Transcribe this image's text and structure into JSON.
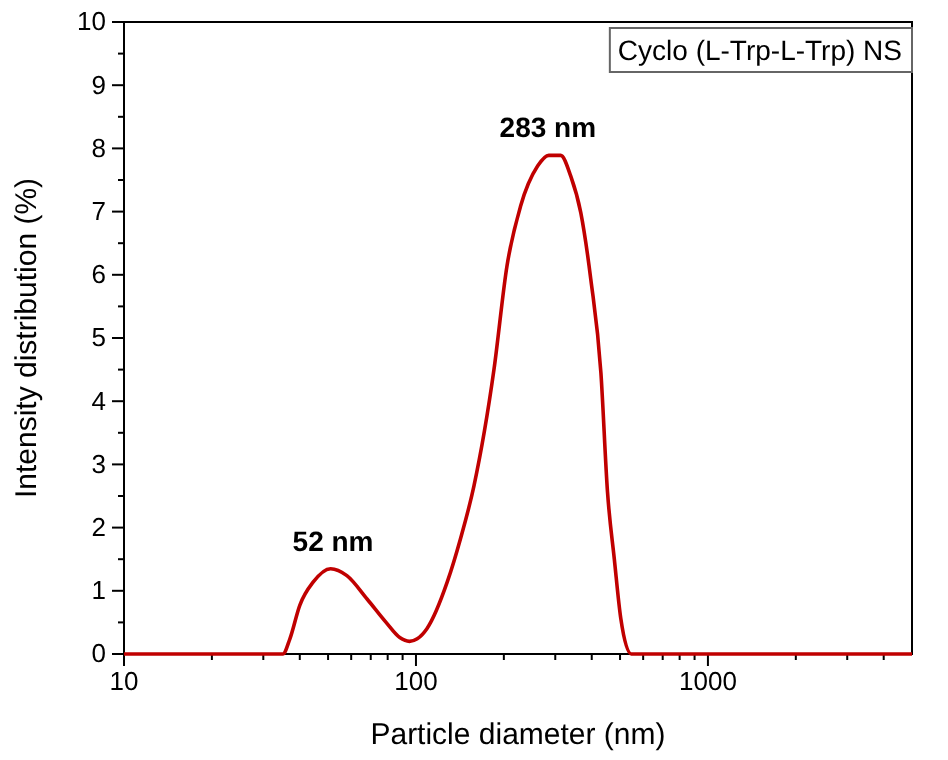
{
  "chart_data": {
    "type": "line",
    "xlabel": "Particle diameter (nm)",
    "ylabel": "Intensity distribution (%)",
    "log": "x",
    "xlim": [
      10,
      5000
    ],
    "ylim": [
      0,
      10
    ],
    "xticks": [
      10,
      {
        "value": 20,
        "label": null
      },
      {
        "value": 30,
        "label": null
      },
      {
        "value": 40,
        "label": null
      },
      {
        "value": 50,
        "label": null
      },
      {
        "value": 60,
        "label": null
      },
      {
        "value": 70,
        "label": null
      },
      {
        "value": 80,
        "label": null
      },
      {
        "value": 90,
        "label": null
      },
      100,
      {
        "value": 200,
        "label": null
      },
      {
        "value": 300,
        "label": null
      },
      {
        "value": 400,
        "label": null
      },
      {
        "value": 500,
        "label": null
      },
      {
        "value": 600,
        "label": null
      },
      {
        "value": 700,
        "label": null
      },
      {
        "value": 800,
        "label": null
      },
      {
        "value": 900,
        "label": null
      },
      1000,
      {
        "value": 2000,
        "label": null
      },
      {
        "value": 3000,
        "label": null
      },
      {
        "value": 4000,
        "label": null
      }
    ],
    "yticks": [
      0,
      {
        "value": 0.5,
        "label": null
      },
      1,
      {
        "value": 1.5,
        "label": null
      },
      2,
      {
        "value": 2.5,
        "label": null
      },
      3,
      {
        "value": 3.5,
        "label": null
      },
      4,
      {
        "value": 4.5,
        "label": null
      },
      5,
      {
        "value": 5.5,
        "label": null
      },
      6,
      {
        "value": 6.5,
        "label": null
      },
      7,
      {
        "value": 7.5,
        "label": null
      },
      8,
      {
        "value": 8.5,
        "label": null
      },
      9,
      {
        "value": 9.5,
        "label": null
      },
      10
    ],
    "annotations": [
      "Cyclo (L-Trp-L-Trp) NS",
      {
        "text": "283 nm",
        "x": 283,
        "y": 7.9
      },
      {
        "text": "52 nm",
        "x": 52,
        "y": 1.35
      }
    ],
    "series": [
      {
        "color": "#c00000",
        "x": [
          10,
          35,
          37,
          40,
          44.5,
          51,
          58,
          68,
          79,
          88,
          95,
          101,
          109,
          128,
          142,
          158,
          185,
          205,
          228,
          261,
          285,
          313,
          339,
          367,
          397,
          430,
          453,
          478,
          503,
          546,
          5000
        ],
        "values": [
          0,
          0,
          0.24,
          0.77,
          1.14,
          1.35,
          1.24,
          0.87,
          0.5,
          0.26,
          0.2,
          0.24,
          0.4,
          1.14,
          1.82,
          2.66,
          4.5,
          6.14,
          7.08,
          7.72,
          7.89,
          7.89,
          7.56,
          6.98,
          5.93,
          4.45,
          2.56,
          1.5,
          0.56,
          0,
          0
        ]
      }
    ]
  }
}
